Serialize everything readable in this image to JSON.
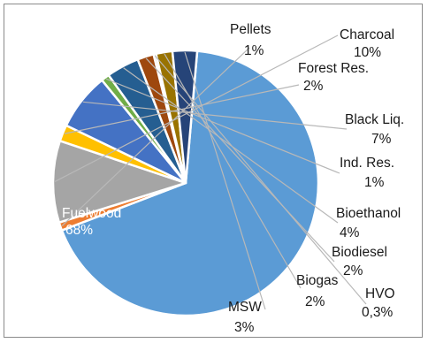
{
  "chart_data": {
    "type": "pie",
    "slices": [
      {
        "name": "Fuelwood",
        "value": 68,
        "value_label": "68%",
        "color": "#5b9bd5"
      },
      {
        "name": "Pellets",
        "value": 1,
        "value_label": "1%",
        "color": "#ed7d31"
      },
      {
        "name": "Charcoal",
        "value": 10,
        "value_label": "10%",
        "color": "#a5a5a5"
      },
      {
        "name": "Forest Res.",
        "value": 2,
        "value_label": "2%",
        "color": "#ffc000"
      },
      {
        "name": "Black Liq.",
        "value": 7,
        "value_label": "7%",
        "color": "#4472c4"
      },
      {
        "name": "Ind. Res.",
        "value": 1,
        "value_label": "1%",
        "color": "#70ad47"
      },
      {
        "name": "Bioethanol",
        "value": 4,
        "value_label": "4%",
        "color": "#255e91"
      },
      {
        "name": "Biodiesel",
        "value": 2,
        "value_label": "2%",
        "color": "#9e480e"
      },
      {
        "name": "HVO",
        "value": 0.3,
        "value_label": "0,3%",
        "color": "#636363"
      },
      {
        "name": "Biogas",
        "value": 2,
        "value_label": "2%",
        "color": "#997300"
      },
      {
        "name": "MSW",
        "value": 3,
        "value_label": "3%",
        "color": "#264478"
      }
    ],
    "legend": "none",
    "start_angle_deg": 5
  }
}
